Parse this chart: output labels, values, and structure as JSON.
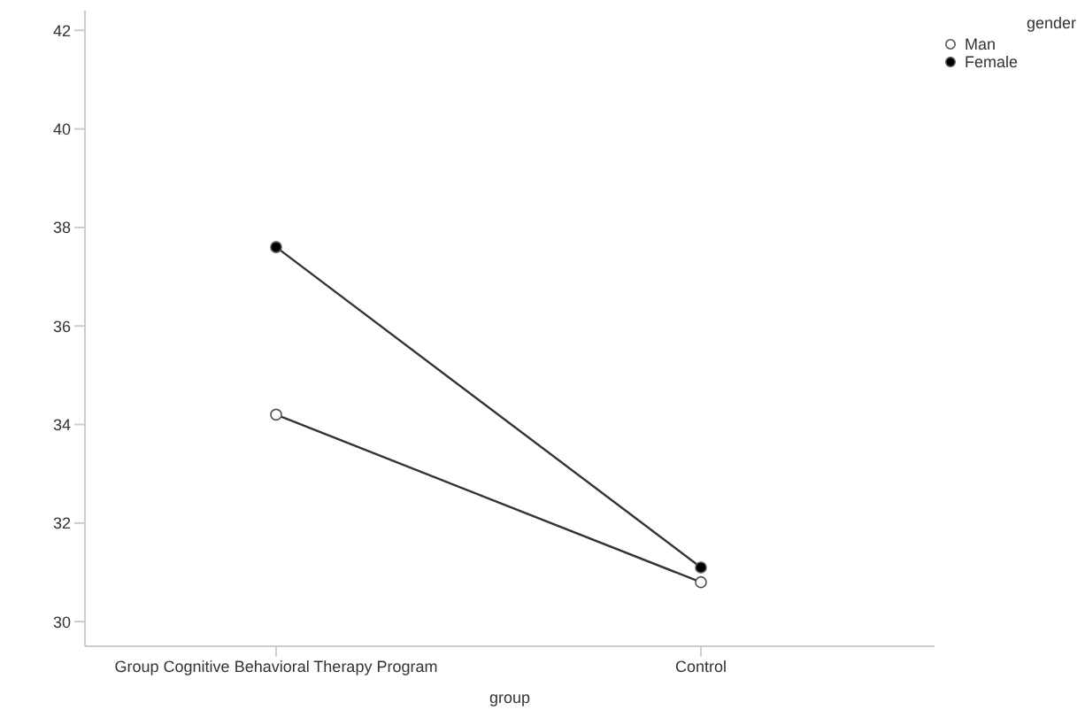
{
  "chart_data": {
    "type": "line",
    "xlabel": "group",
    "legend_title": "gender",
    "categories": [
      "Group Cognitive Behavioral Therapy Program",
      "Control"
    ],
    "series": [
      {
        "name": "Man",
        "color": "#ffffff",
        "values": [
          34.2,
          30.8
        ]
      },
      {
        "name": "Female",
        "color": "#000000",
        "values": [
          37.6,
          31.1
        ]
      }
    ],
    "ylim": [
      29.5,
      42.4
    ],
    "yticks": [
      30,
      32,
      34,
      36,
      38,
      40,
      42
    ],
    "grid": false,
    "legend": "top right",
    "marker": "circle",
    "line_style": "solid"
  }
}
